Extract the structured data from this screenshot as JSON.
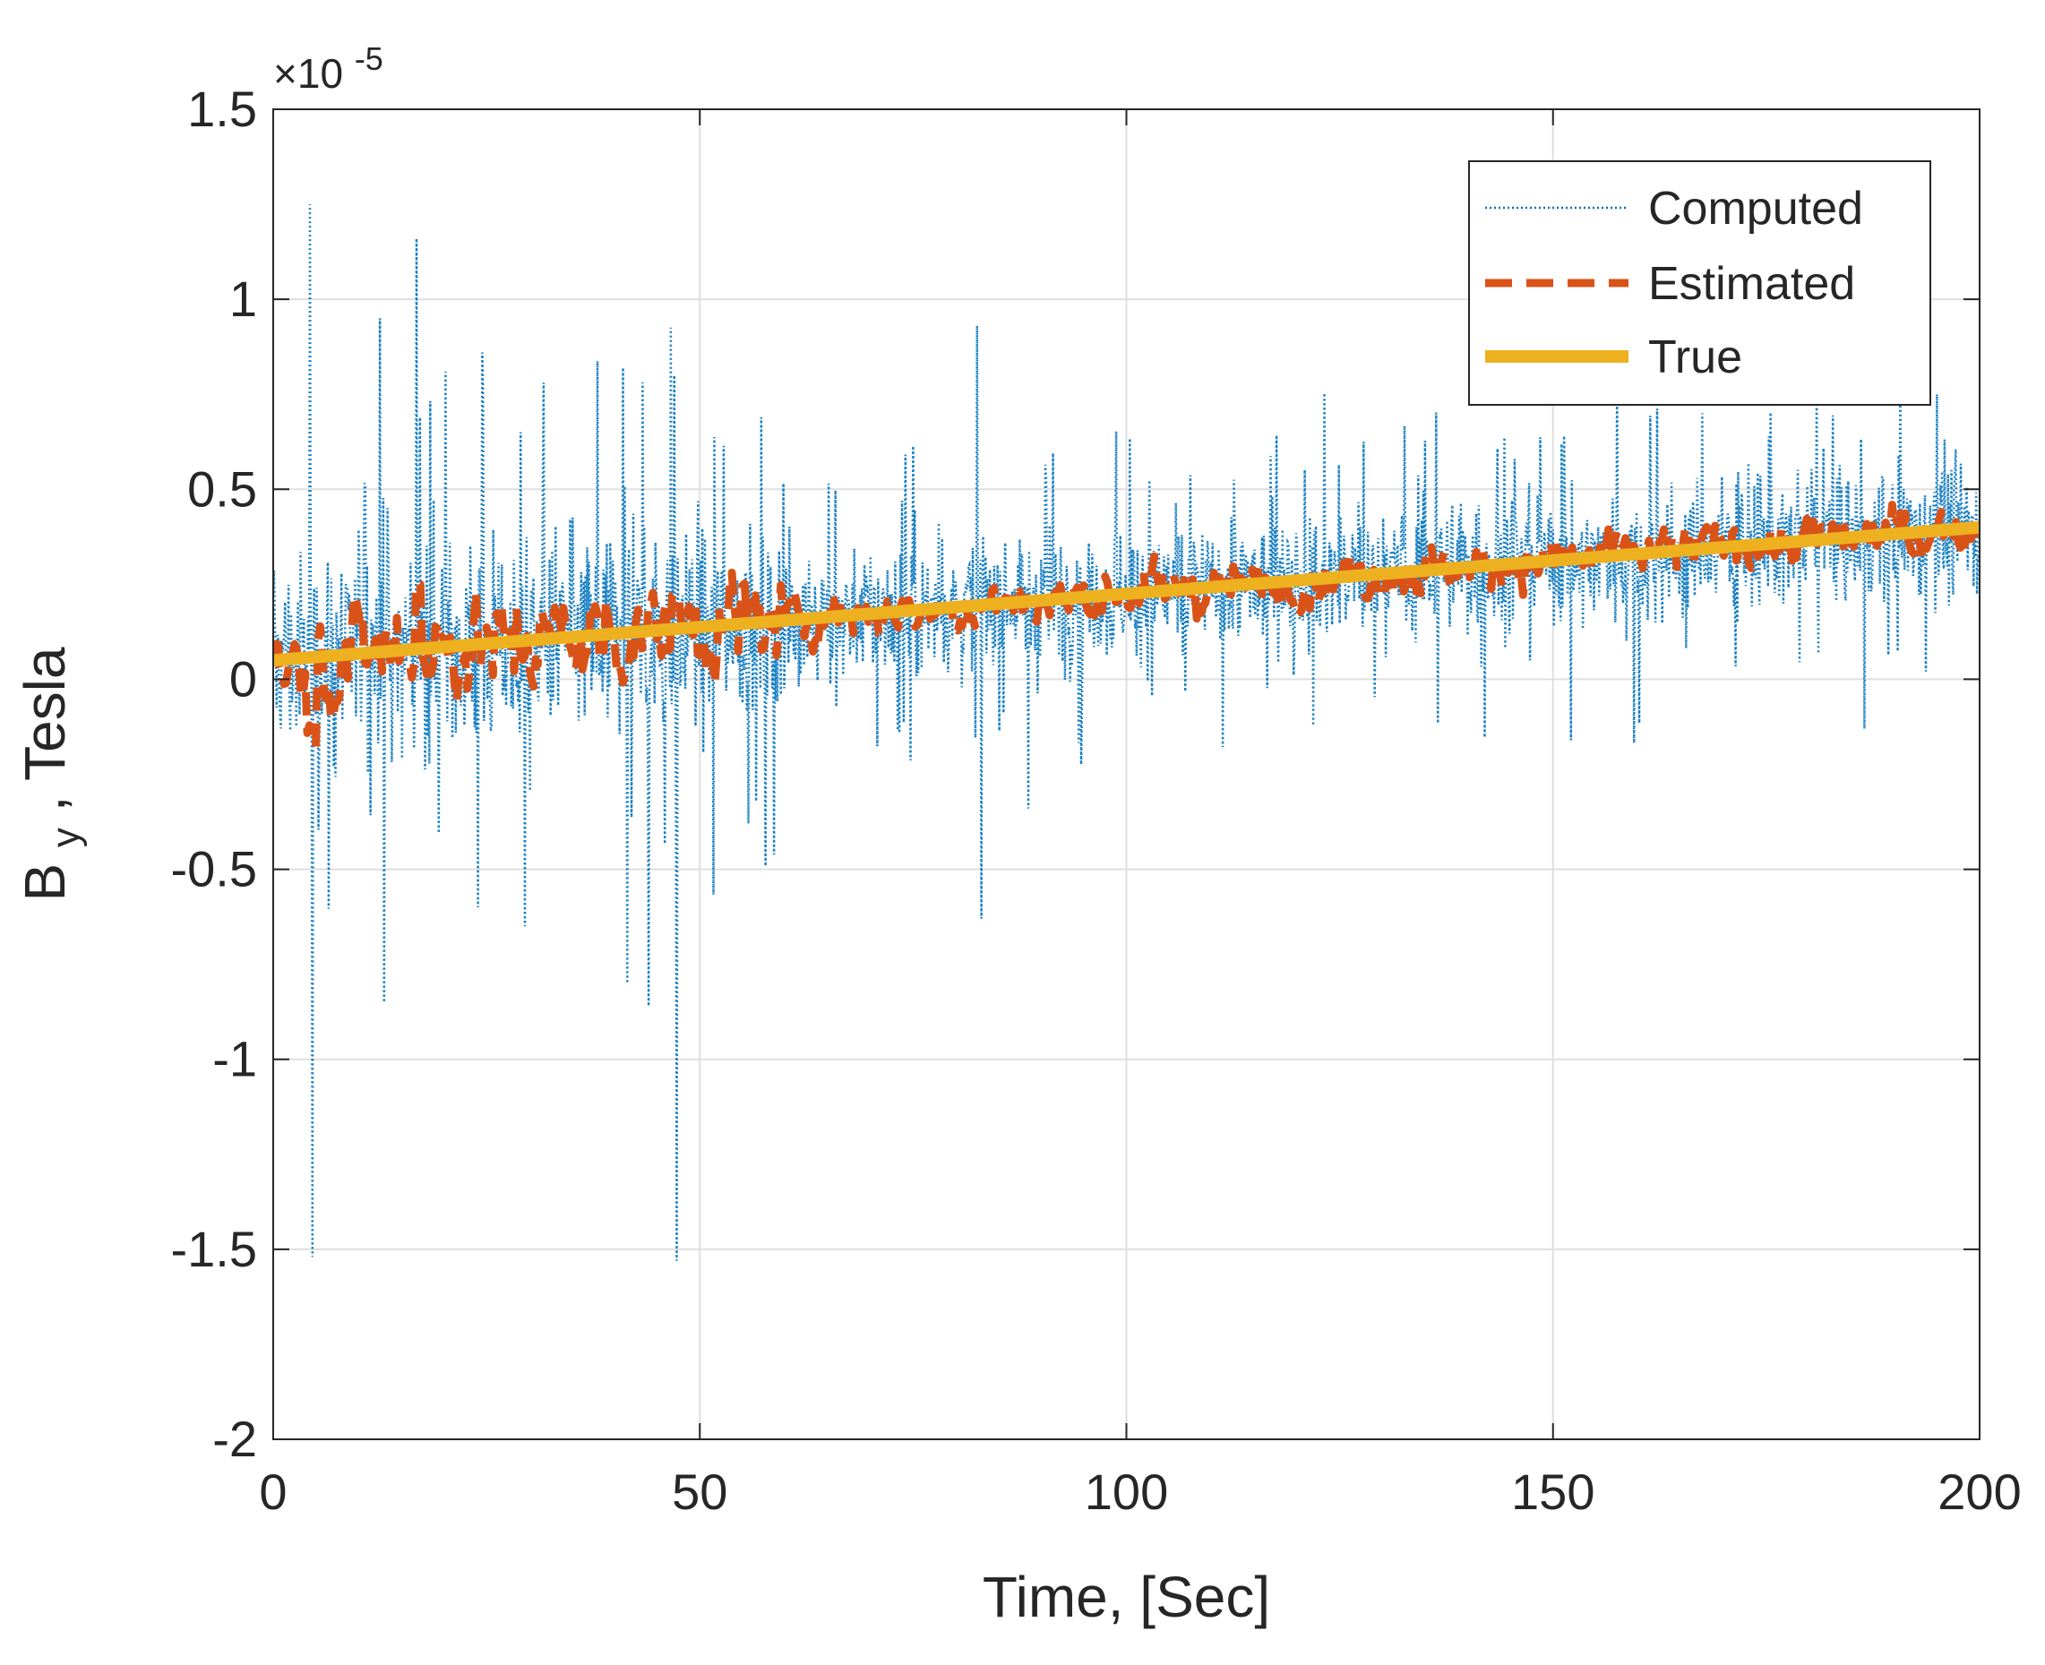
{
  "chart_data": {
    "type": "line",
    "title": "",
    "xlabel": "Time, [Sec]",
    "ylabel_main": "B",
    "ylabel_sub": "y",
    "ylabel_rest": ", Tesla",
    "xlim": [
      0,
      200
    ],
    "ylim": [
      -2e-05,
      1.5e-05
    ],
    "x_ticks": [
      0,
      50,
      100,
      150,
      200
    ],
    "x_tick_labels": [
      "0",
      "50",
      "100",
      "150",
      "200"
    ],
    "y_ticks": [
      -2e-05,
      -1.5e-05,
      -1e-05,
      -5e-06,
      0,
      5e-06,
      1e-05,
      1.5e-05
    ],
    "y_tick_labels": [
      "-2",
      "-1.5",
      "-1",
      "-0.5",
      "0",
      "0.5",
      "1",
      "1.5"
    ],
    "y_exponent_base": "×10",
    "y_exponent_power": "-5",
    "grid": true,
    "legend_position": "top-right",
    "series": [
      {
        "name": "Computed",
        "style": "dotted",
        "color": "#0072BD",
        "description": "noisy measurement around linear trend",
        "trend_start": 5e-07,
        "trend_end": 4e-06,
        "notable_points": [
          {
            "x": 4.3,
            "y": 1.25e-05
          },
          {
            "x": 4.6,
            "y": -1.52e-05
          },
          {
            "x": 12.5,
            "y": 9.5e-06
          },
          {
            "x": 13.0,
            "y": -8.5e-06
          },
          {
            "x": 16.8,
            "y": 1.16e-05
          },
          {
            "x": 24.5,
            "y": 8.6e-06
          },
          {
            "x": 24.0,
            "y": -6e-06
          },
          {
            "x": 29.0,
            "y": 6.5e-06
          },
          {
            "x": 29.5,
            "y": -6.5e-06
          },
          {
            "x": 41.0,
            "y": 8.2e-06
          },
          {
            "x": 41.5,
            "y": -8e-06
          },
          {
            "x": 44.0,
            "y": -8.6e-06
          },
          {
            "x": 47.0,
            "y": 8e-06
          },
          {
            "x": 47.3,
            "y": -1.53e-05
          },
          {
            "x": 82.5,
            "y": 9.3e-06
          },
          {
            "x": 83.0,
            "y": -6.3e-06
          },
          {
            "x": 88.5,
            "y": -3.4e-06
          },
          {
            "x": 167.5,
            "y": 7e-06
          },
          {
            "x": 186.5,
            "y": -1.3e-06
          },
          {
            "x": 195.0,
            "y": 7.5e-06
          }
        ]
      },
      {
        "name": "Estimated",
        "style": "dashed",
        "color": "#D95319",
        "description": "filtered estimate tracking true value with small excursions",
        "trend_start": 5e-07,
        "trend_end": 4e-06
      },
      {
        "name": "True",
        "style": "solid",
        "color": "#EDB120",
        "start": [
          0,
          5e-07
        ],
        "end": [
          200,
          4e-06
        ]
      }
    ]
  }
}
